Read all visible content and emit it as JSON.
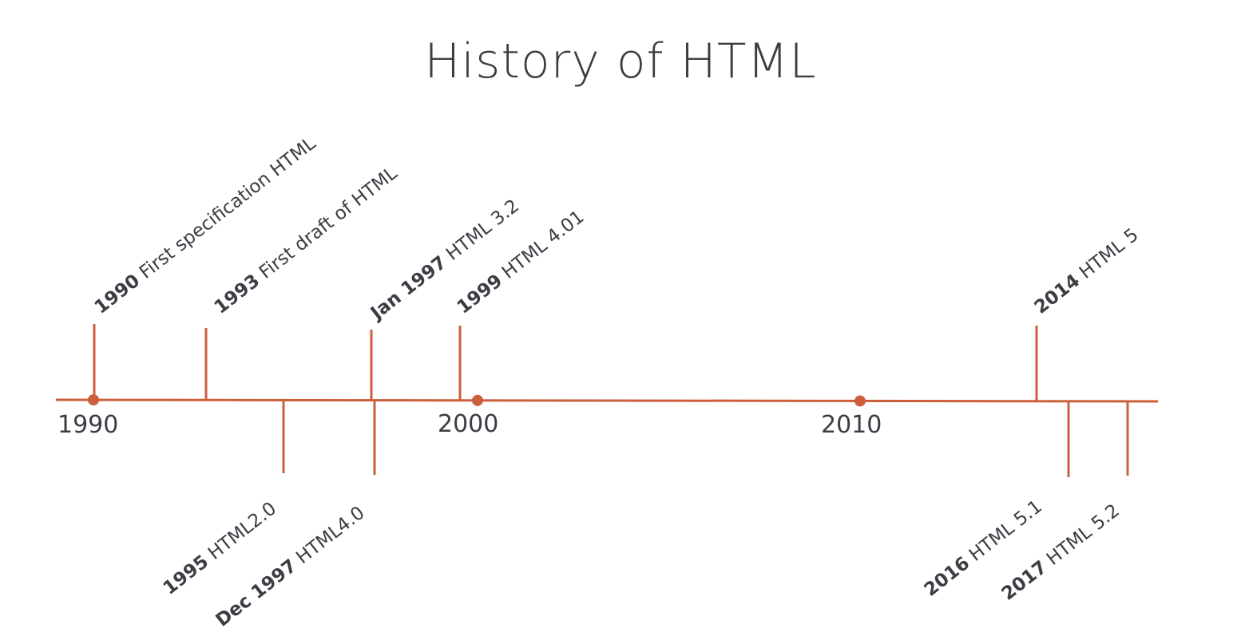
{
  "title": "History of HTML",
  "colors": {
    "line": "#cc5f3c",
    "text": "#3c3c44"
  },
  "chart_data": {
    "type": "timeline",
    "major_years": [
      "1990",
      "2000",
      "2010"
    ],
    "events": [
      {
        "year": "1990",
        "label": "First specification HTML",
        "side": "above"
      },
      {
        "year": "1993",
        "label": "First draft of HTML",
        "side": "above"
      },
      {
        "year": "1995",
        "label": "HTML2.0",
        "side": "below"
      },
      {
        "year": "Jan 1997",
        "label": "HTML 3.2",
        "side": "above"
      },
      {
        "year": "Dec 1997",
        "label": "HTML4.0",
        "side": "below"
      },
      {
        "year": "1999",
        "label": "HTML 4.01",
        "side": "above"
      },
      {
        "year": "2014",
        "label": "HTML 5",
        "side": "above"
      },
      {
        "year": "2016",
        "label": "HTML 5.1",
        "side": "below"
      },
      {
        "year": "2017",
        "label": "HTML 5.2",
        "side": "below"
      }
    ]
  }
}
